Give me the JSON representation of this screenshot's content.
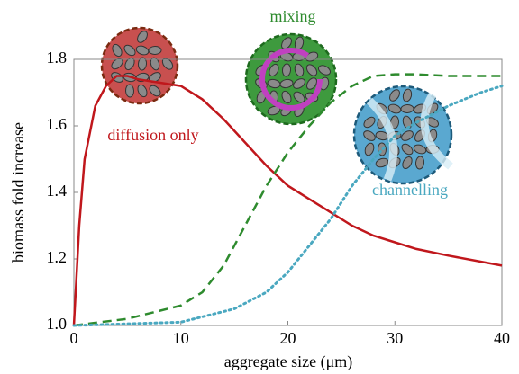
{
  "chart_data": {
    "type": "line",
    "xlabel": "aggregate size (μm)",
    "ylabel": "biomass fold increase",
    "xlim": [
      0,
      40
    ],
    "xticks": [
      0,
      10,
      20,
      30,
      40
    ],
    "ylim": [
      1.0,
      1.8
    ],
    "yticks": [
      {
        "value": 1.0,
        "label": "1.0"
      },
      1.2,
      1.4,
      1.6,
      1.8
    ],
    "series": [
      {
        "name": "diffusion only",
        "color": "#c0171c",
        "dash": "solid",
        "x": [
          0,
          0.5,
          1,
          2,
          3,
          4,
          5,
          6,
          8,
          10,
          12,
          14,
          16,
          18,
          20,
          22,
          24,
          26,
          28,
          30,
          32,
          35,
          40
        ],
        "values": [
          1.0,
          1.3,
          1.5,
          1.66,
          1.72,
          1.75,
          1.75,
          1.74,
          1.73,
          1.72,
          1.68,
          1.62,
          1.55,
          1.48,
          1.42,
          1.38,
          1.34,
          1.3,
          1.27,
          1.25,
          1.23,
          1.21,
          1.18
        ]
      },
      {
        "name": "mixing",
        "color": "#2e8b2e",
        "dash": "dashed",
        "x": [
          0,
          5,
          10,
          12,
          14,
          16,
          18,
          20,
          22,
          24,
          26,
          28,
          30,
          32,
          35,
          40
        ],
        "values": [
          1.0,
          1.02,
          1.06,
          1.1,
          1.18,
          1.3,
          1.42,
          1.52,
          1.6,
          1.67,
          1.72,
          1.75,
          1.755,
          1.755,
          1.75,
          1.75
        ]
      },
      {
        "name": "channelling",
        "color": "#4aa8c0",
        "dash": "dotted",
        "x": [
          0,
          10,
          15,
          18,
          20,
          22,
          24,
          26,
          28,
          30,
          32,
          35,
          38,
          40
        ],
        "values": [
          1.0,
          1.01,
          1.05,
          1.1,
          1.16,
          1.24,
          1.32,
          1.42,
          1.5,
          1.57,
          1.61,
          1.66,
          1.7,
          1.72
        ]
      }
    ]
  }
}
